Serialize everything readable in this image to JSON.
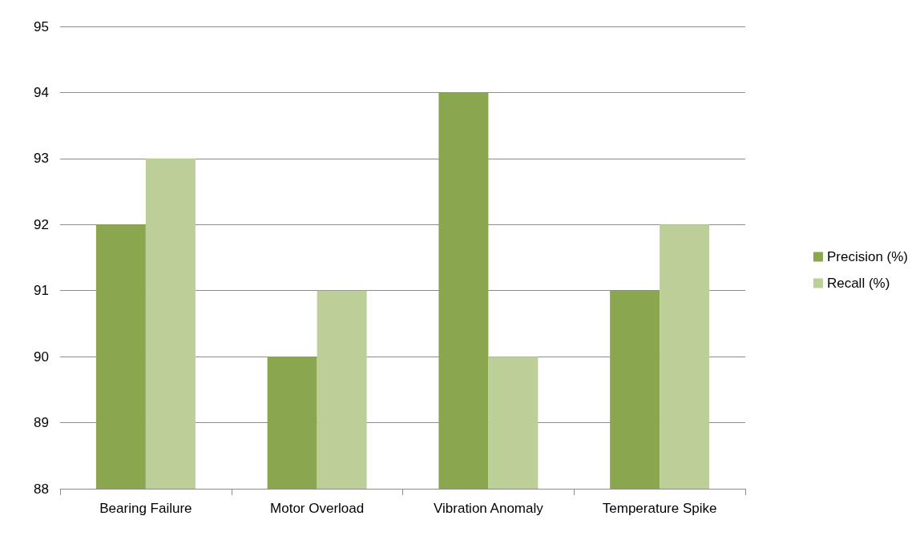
{
  "chart_data": {
    "type": "bar",
    "categories": [
      "Bearing Failure",
      "Motor Overload",
      "Vibration Anomaly",
      "Temperature Spike"
    ],
    "series": [
      {
        "name": "Precision (%)",
        "color": "#8aa64f",
        "values": [
          92,
          90,
          94,
          91
        ]
      },
      {
        "name": "Recall (%)",
        "color": "#bccf98",
        "values": [
          93,
          91,
          90,
          92
        ]
      }
    ],
    "ylim": [
      88,
      95
    ],
    "yticks": [
      88,
      89,
      90,
      91,
      92,
      93,
      94,
      95
    ],
    "grid": "y",
    "legend": "right"
  }
}
